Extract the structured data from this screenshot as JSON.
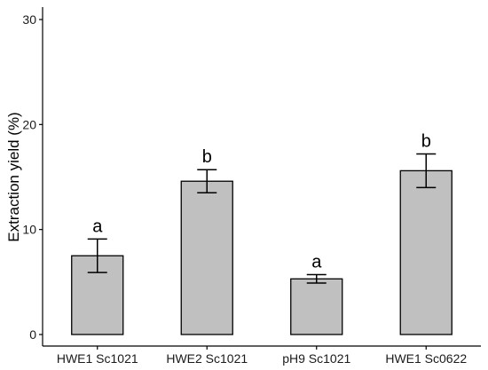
{
  "chart_data": {
    "type": "bar",
    "title": "",
    "xlabel": "",
    "ylabel": "Extraction yield (%)",
    "ylim": [
      0,
      30
    ],
    "yticks": [
      0,
      10,
      20,
      30
    ],
    "categories": [
      "HWE1 Sc1021",
      "HWE2 Sc1021",
      "pH9 Sc1021",
      "HWE1 Sc0622"
    ],
    "values": [
      7.5,
      14.6,
      5.3,
      15.6
    ],
    "error": [
      1.6,
      1.1,
      0.4,
      1.6
    ],
    "significance": [
      "a",
      "b",
      "a",
      "b"
    ],
    "grid": false,
    "colors": {
      "bar_fill": "#c0c0c0",
      "bar_stroke": "#000000",
      "axis": "#000000"
    }
  }
}
